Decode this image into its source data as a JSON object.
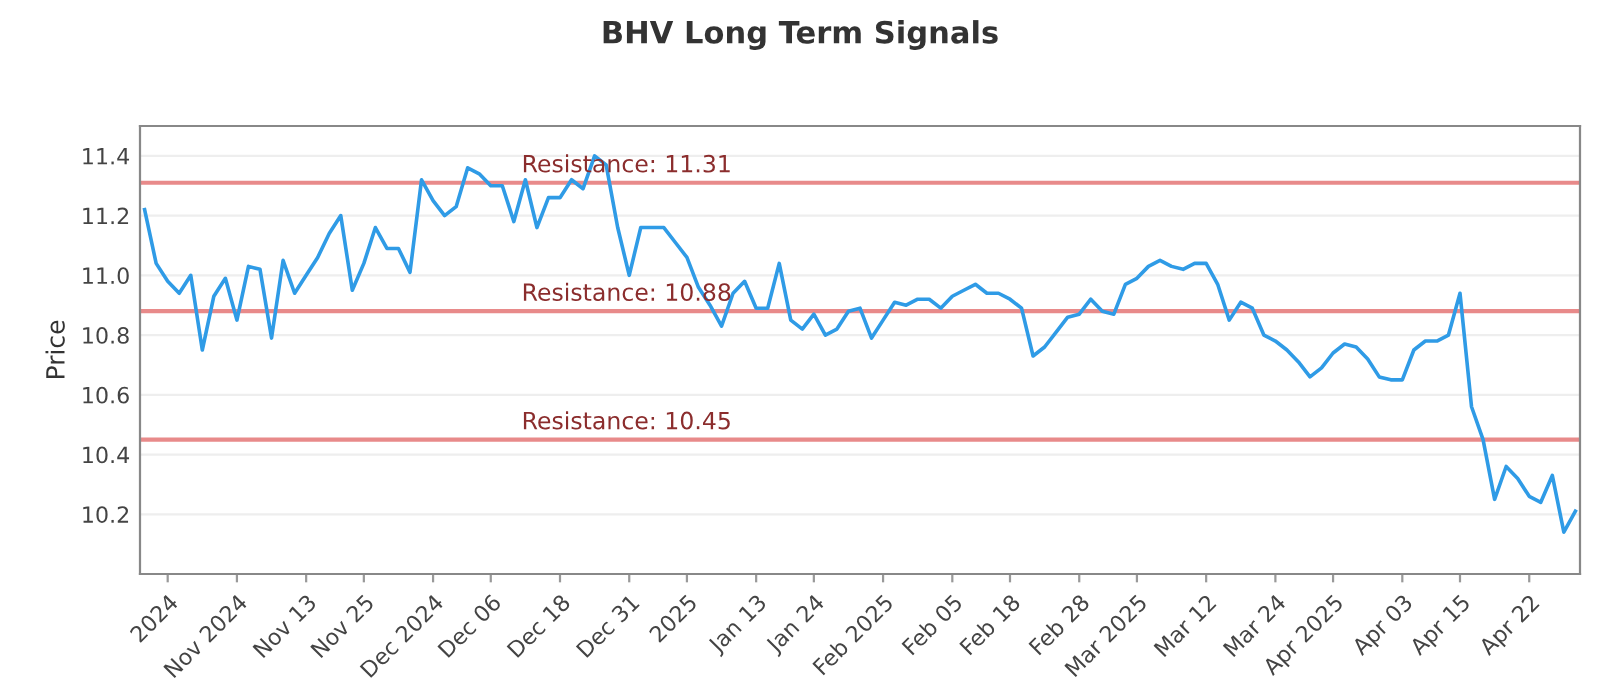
{
  "chart_data": {
    "type": "line",
    "title": "BHV Long Term Signals",
    "ylabel": "Price",
    "categories": [
      null,
      null,
      "2024",
      null,
      null,
      null,
      null,
      null,
      "Nov 2024",
      null,
      null,
      null,
      null,
      null,
      "Nov 13",
      null,
      null,
      null,
      null,
      "Nov 25",
      null,
      null,
      null,
      null,
      null,
      "Dec 2024",
      null,
      null,
      null,
      null,
      "Dec 06",
      null,
      null,
      null,
      null,
      null,
      "Dec 18",
      null,
      null,
      null,
      null,
      null,
      "Dec 31",
      null,
      null,
      null,
      null,
      "2025",
      null,
      null,
      null,
      null,
      null,
      "Jan 13",
      null,
      null,
      null,
      null,
      "Jan 24",
      null,
      null,
      null,
      null,
      null,
      "Feb 2025",
      null,
      null,
      null,
      null,
      null,
      "Feb 05",
      null,
      null,
      null,
      null,
      "Feb 18",
      null,
      null,
      null,
      null,
      null,
      "Feb 28",
      null,
      null,
      null,
      null,
      "Mar 2025",
      null,
      null,
      null,
      null,
      null,
      "Mar 12",
      null,
      null,
      null,
      null,
      null,
      "Mar 24",
      null,
      null,
      null,
      null,
      "Apr 2025",
      null,
      null,
      null,
      null,
      null,
      "Apr 03",
      null,
      null,
      null,
      null,
      "Apr 15",
      null,
      null,
      null,
      null,
      null,
      "Apr 22",
      null,
      null,
      null,
      null
    ],
    "series": [
      {
        "color": "#2f9be6",
        "values": [
          11.22,
          11.04,
          10.98,
          10.94,
          11.0,
          10.75,
          10.93,
          10.99,
          10.85,
          11.03,
          11.02,
          10.79,
          11.05,
          10.94,
          11.0,
          11.06,
          11.14,
          11.2,
          10.95,
          11.04,
          11.16,
          11.09,
          11.09,
          11.01,
          11.32,
          11.25,
          11.2,
          11.23,
          11.36,
          11.34,
          11.3,
          11.3,
          11.18,
          11.32,
          11.16,
          11.26,
          11.26,
          11.32,
          11.29,
          11.4,
          11.37,
          11.16,
          11.0,
          11.16,
          11.16,
          11.16,
          11.11,
          11.06,
          10.96,
          10.9,
          10.83,
          10.94,
          10.98,
          10.89,
          10.89,
          11.04,
          10.85,
          10.82,
          10.87,
          10.8,
          10.82,
          10.88,
          10.89,
          10.79,
          10.85,
          10.91,
          10.9,
          10.92,
          10.92,
          10.89,
          10.93,
          10.95,
          10.97,
          10.94,
          10.94,
          10.92,
          10.89,
          10.73,
          10.76,
          10.81,
          10.86,
          10.87,
          10.92,
          10.88,
          10.87,
          10.97,
          10.99,
          11.03,
          11.05,
          11.03,
          11.02,
          11.04,
          11.04,
          10.97,
          10.85,
          10.91,
          10.89,
          10.8,
          10.78,
          10.75,
          10.71,
          10.66,
          10.69,
          10.74,
          10.77,
          10.76,
          10.72,
          10.66,
          10.65,
          10.65,
          10.75,
          10.78,
          10.78,
          10.8,
          10.94,
          10.56,
          10.45,
          10.25,
          10.36,
          10.32,
          10.26,
          10.24,
          10.33,
          10.14,
          10.21
        ]
      }
    ],
    "ylim": [
      10.0,
      11.5
    ],
    "yticks": [
      10.2,
      10.4,
      10.6,
      10.8,
      {
        "value": 11.0,
        "label": "11.0"
      },
      11.2,
      11.4
    ],
    "grid": "y",
    "legend": false,
    "marker": "none",
    "line_style": "solid",
    "ref_lines": [
      {
        "axis": "y",
        "value": 11.31,
        "label": "Resistance: 11.31",
        "color": "#e88a8a"
      },
      {
        "axis": "y",
        "value": 10.88,
        "label": "Resistance: 10.88",
        "color": "#e88a8a"
      },
      {
        "axis": "y",
        "value": 10.45,
        "label": "Resistance: 10.45",
        "color": "#e88a8a"
      }
    ]
  }
}
